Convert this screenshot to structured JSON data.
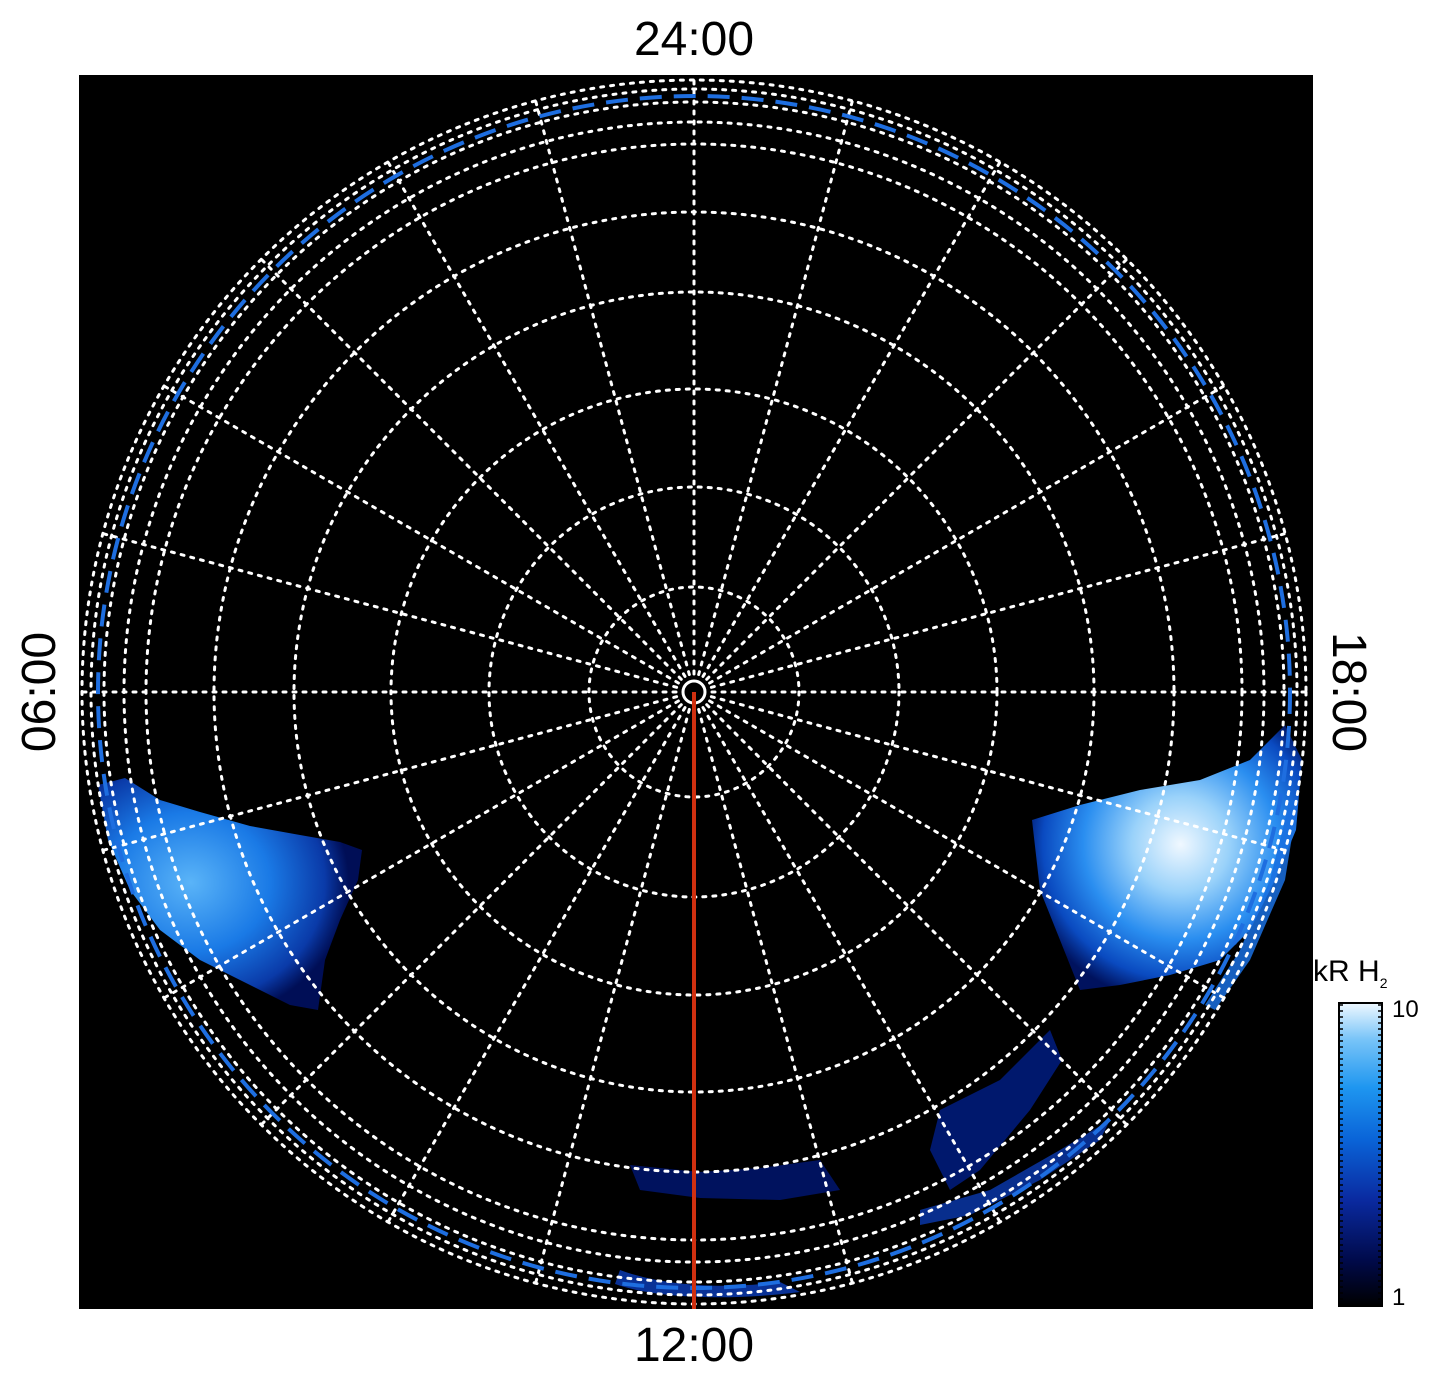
{
  "labels": {
    "top": "24:00",
    "bottom": "12:00",
    "left": "06:00",
    "right": "18:00"
  },
  "colorbar": {
    "unit": "kR",
    "species": "H",
    "species_subscript": "2",
    "max_label": "10",
    "min_label": "1",
    "colors": [
      "#000000",
      "#000a4a",
      "#0a2aa0",
      "#0a64d8",
      "#1e96f0",
      "#78c4f8",
      "#e8f6ff"
    ]
  },
  "colors": {
    "background": "#000000",
    "grid": "#ffffff",
    "boundary_dashed": "#1e6ee0",
    "meridian": "#d03010"
  }
}
